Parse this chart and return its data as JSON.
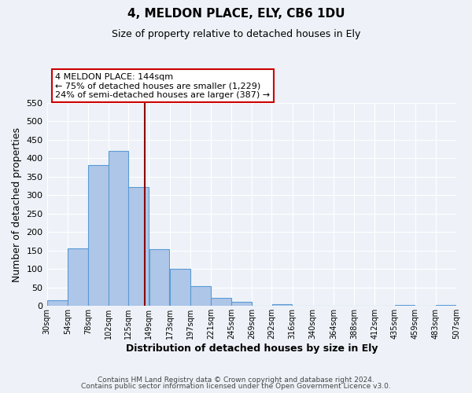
{
  "title": "4, MELDON PLACE, ELY, CB6 1DU",
  "subtitle": "Size of property relative to detached houses in Ely",
  "xlabel": "Distribution of detached houses by size in Ely",
  "ylabel": "Number of detached properties",
  "bar_left_edges": [
    30,
    54,
    78,
    102,
    125,
    149,
    173,
    197,
    221,
    245,
    269,
    292,
    316,
    340,
    364,
    388,
    412,
    435,
    459,
    483
  ],
  "bar_widths": [
    24,
    24,
    24,
    23,
    24,
    24,
    24,
    24,
    24,
    24,
    23,
    24,
    24,
    24,
    24,
    24,
    23,
    24,
    24,
    24
  ],
  "bar_heights": [
    15,
    155,
    381,
    419,
    323,
    153,
    100,
    54,
    22,
    11,
    0,
    5,
    0,
    0,
    0,
    0,
    0,
    3,
    0,
    3
  ],
  "bar_color": "#aec6e8",
  "bar_edge_color": "#5b9bd5",
  "tick_labels": [
    "30sqm",
    "54sqm",
    "78sqm",
    "102sqm",
    "125sqm",
    "149sqm",
    "173sqm",
    "197sqm",
    "221sqm",
    "245sqm",
    "269sqm",
    "292sqm",
    "316sqm",
    "340sqm",
    "364sqm",
    "388sqm",
    "412sqm",
    "435sqm",
    "459sqm",
    "483sqm",
    "507sqm"
  ],
  "ylim": [
    0,
    550
  ],
  "yticks": [
    0,
    50,
    100,
    150,
    200,
    250,
    300,
    350,
    400,
    450,
    500,
    550
  ],
  "vline_x": 144,
  "vline_color": "#8b0000",
  "box_text_lines": [
    "4 MELDON PLACE: 144sqm",
    "← 75% of detached houses are smaller (1,229)",
    "24% of semi-detached houses are larger (387) →"
  ],
  "bg_color": "#eef2f8",
  "grid_color": "#ffffff",
  "footer_line1": "Contains HM Land Registry data © Crown copyright and database right 2024.",
  "footer_line2": "Contains public sector information licensed under the Open Government Licence v3.0."
}
